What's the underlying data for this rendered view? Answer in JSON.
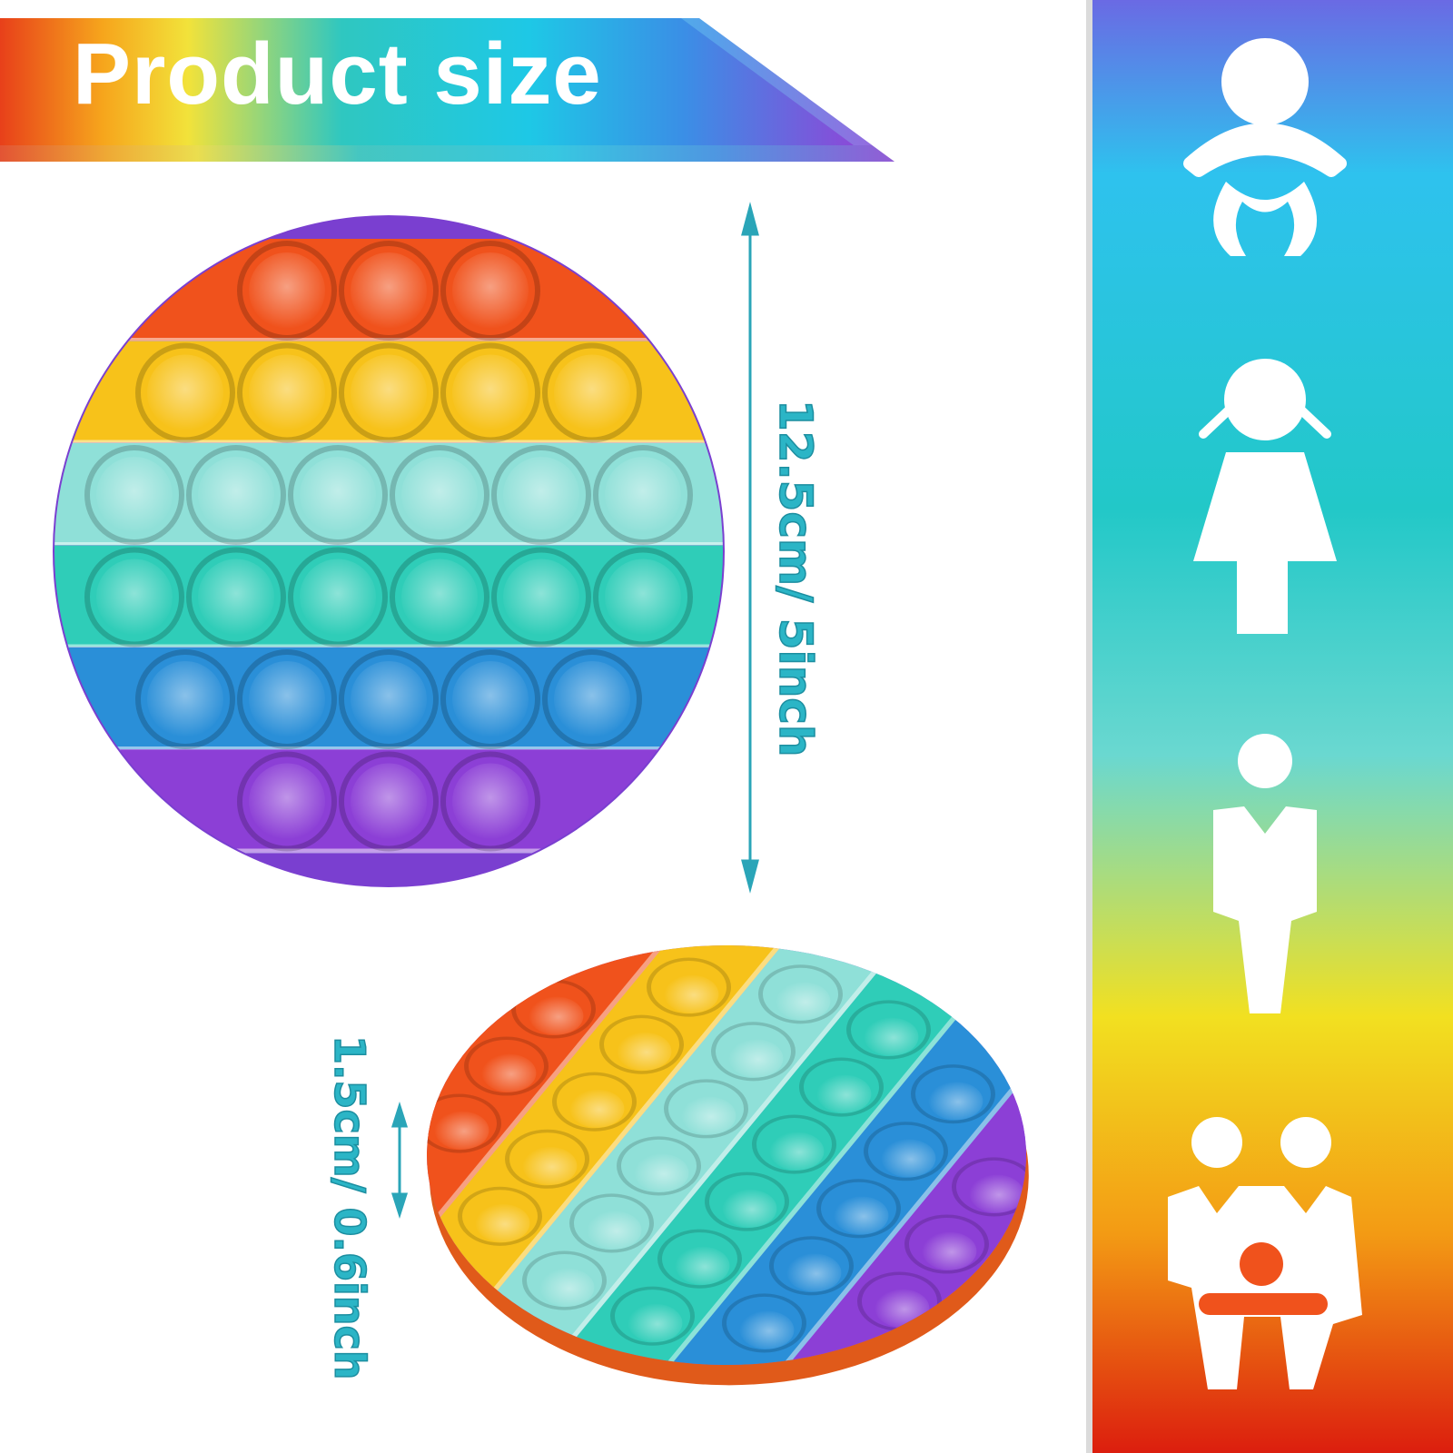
{
  "banner": {
    "title": "Product size"
  },
  "dimensions": {
    "diameter": "12.5cm/ 5inch",
    "thickness": "1.5cm/ 0.6inch"
  },
  "colors": {
    "rows": [
      "#f0521c",
      "#f7c21a",
      "#8fe0d8",
      "#2fcdb8",
      "#2a8fd8",
      "#8c3fd6"
    ],
    "dim_text": "#2bb5c6",
    "side_panel": [
      "#7a5fe0",
      "#2ec6ea",
      "#2cc8c0",
      "#f4e020",
      "#f39a14",
      "#e02010"
    ]
  },
  "top_toy": {
    "bubble_rows": [
      3,
      5,
      6,
      6,
      5,
      3
    ]
  },
  "side_toy": {
    "bubble_stripes": [
      3,
      5,
      6,
      6,
      5,
      3
    ]
  },
  "age_icons": [
    "baby-icon",
    "girl-icon",
    "boy-icon",
    "family-icon"
  ]
}
